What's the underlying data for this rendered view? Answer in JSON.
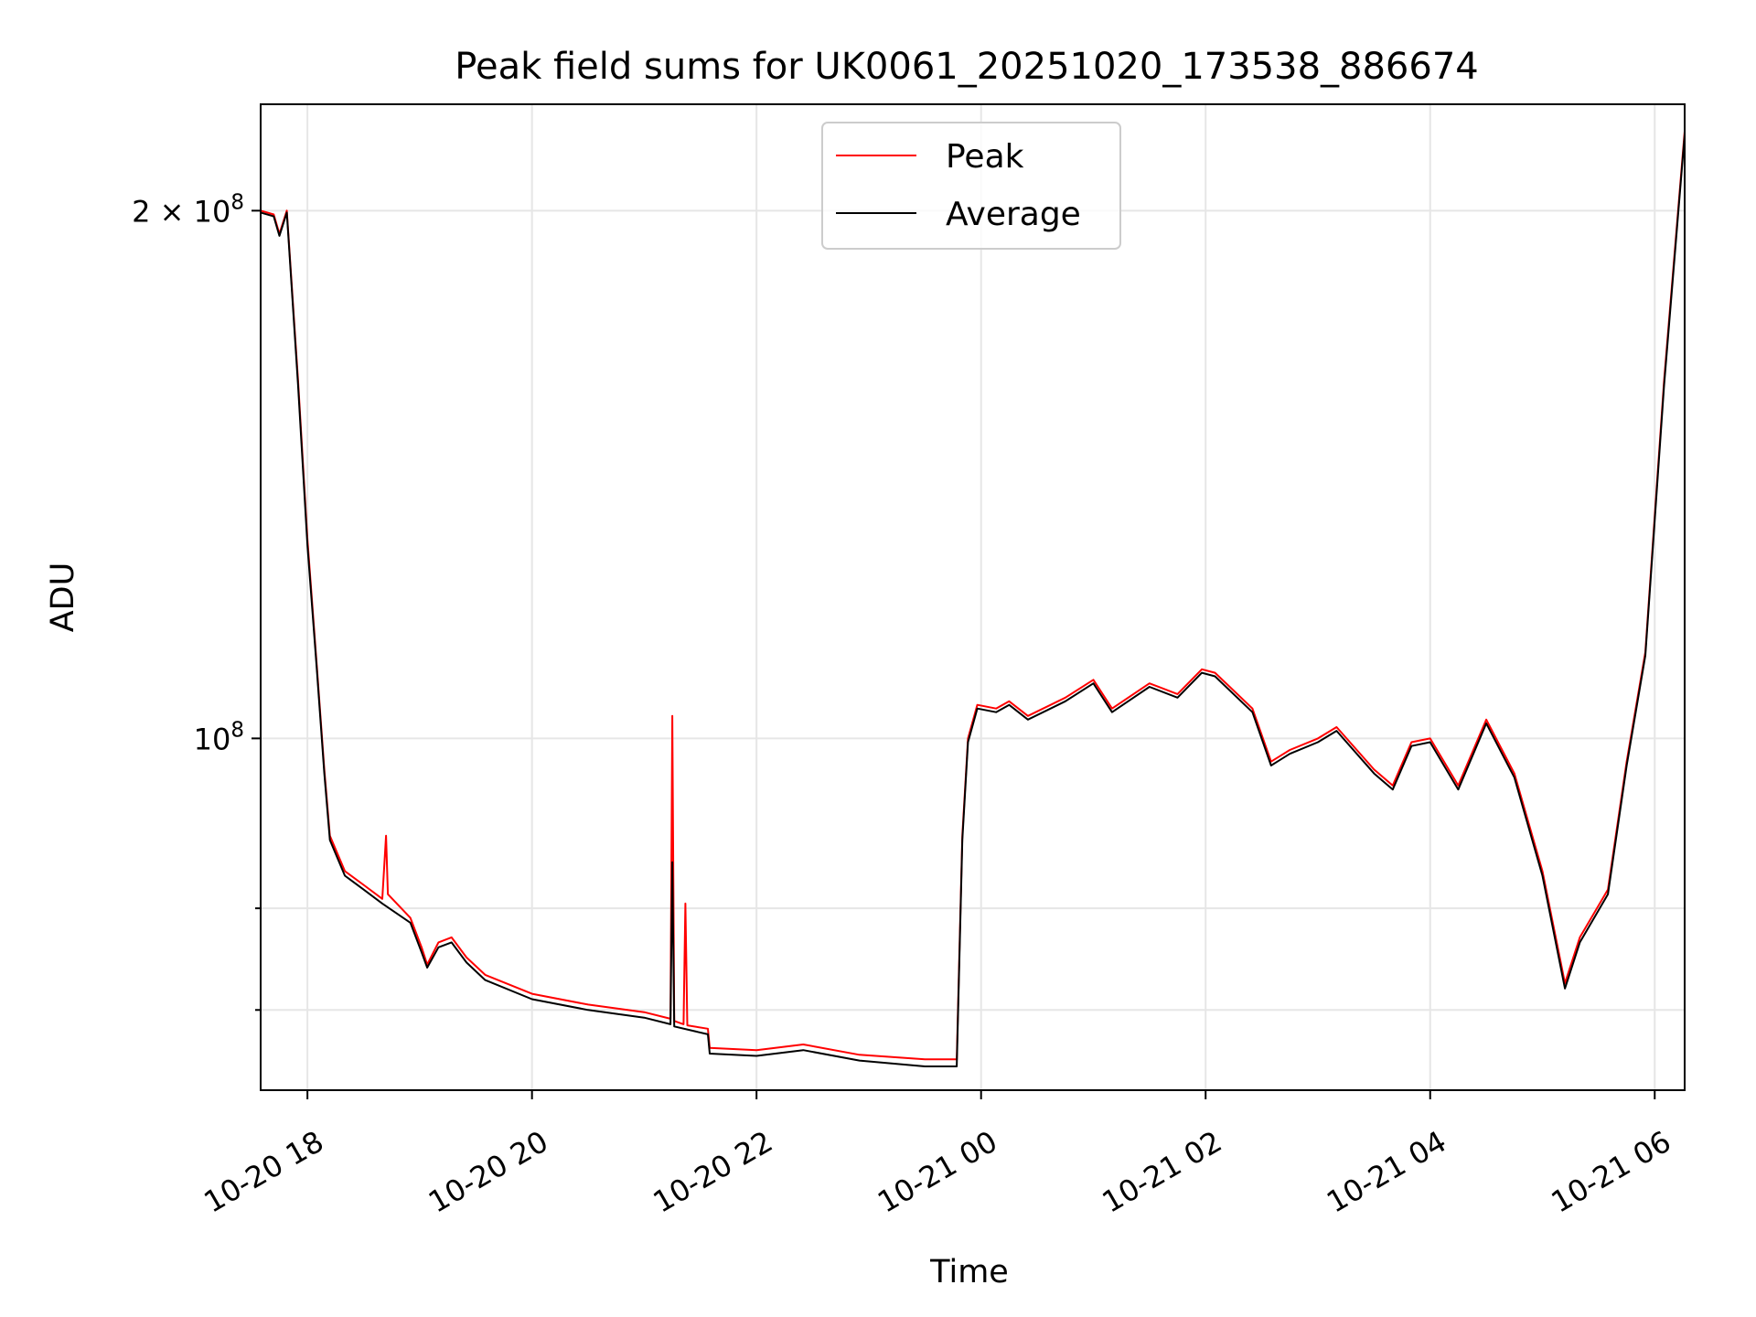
{
  "chart_data": {
    "type": "line",
    "title": "Peak field sums for UK0061_20251020_173538_886674",
    "xlabel": "Time",
    "ylabel": "ADU",
    "y_scale": "log",
    "x_range": [
      "2025-10-20 17:35",
      "2025-10-21 06:16"
    ],
    "ylim": [
      63000000,
      230000000
    ],
    "x_ticks": [
      {
        "label": "10-20 18",
        "time": "2025-10-20 18:00"
      },
      {
        "label": "10-20 20",
        "time": "2025-10-20 20:00"
      },
      {
        "label": "10-20 22",
        "time": "2025-10-20 22:00"
      },
      {
        "label": "10-21 00",
        "time": "2025-10-21 00:00"
      },
      {
        "label": "10-21 02",
        "time": "2025-10-21 02:00"
      },
      {
        "label": "10-21 04",
        "time": "2025-10-21 04:00"
      },
      {
        "label": "10-21 06",
        "time": "2025-10-21 06:00"
      }
    ],
    "y_ticks": [
      {
        "value": 100000000,
        "base": "10",
        "exp": "8"
      },
      {
        "value": 200000000,
        "coef": "2 × ",
        "base": "10",
        "exp": "8"
      }
    ],
    "y_minor_ticks": [
      80000000,
      70000000
    ],
    "grid": true,
    "legend_position": "upper-center",
    "series": [
      {
        "name": "Peak",
        "color": "#ff0000",
        "points": [
          [
            "2025-10-20 17:35",
            200000000
          ],
          [
            "2025-10-20 17:42",
            199000000
          ],
          [
            "2025-10-20 17:45",
            194000000
          ],
          [
            "2025-10-20 17:49",
            200000000
          ],
          [
            "2025-10-20 17:55",
            160000000
          ],
          [
            "2025-10-20 18:00",
            130000000
          ],
          [
            "2025-10-20 18:05",
            110000000
          ],
          [
            "2025-10-20 18:09",
            96000000
          ],
          [
            "2025-10-20 18:12",
            88000000
          ],
          [
            "2025-10-20 18:20",
            84000000
          ],
          [
            "2025-10-20 18:30",
            82500000
          ],
          [
            "2025-10-20 18:40",
            81000000
          ],
          [
            "2025-10-20 18:42",
            88000000
          ],
          [
            "2025-10-20 18:43",
            81500000
          ],
          [
            "2025-10-20 18:55",
            79000000
          ],
          [
            "2025-10-20 19:01",
            76000000
          ],
          [
            "2025-10-20 19:04",
            74300000
          ],
          [
            "2025-10-20 19:10",
            76500000
          ],
          [
            "2025-10-20 19:17",
            77000000
          ],
          [
            "2025-10-20 19:25",
            75000000
          ],
          [
            "2025-10-20 19:35",
            73300000
          ],
          [
            "2025-10-20 20:00",
            71500000
          ],
          [
            "2025-10-20 20:30",
            70500000
          ],
          [
            "2025-10-20 21:00",
            69800000
          ],
          [
            "2025-10-20 21:14",
            69200000
          ],
          [
            "2025-10-20 21:15",
            103000000
          ],
          [
            "2025-10-20 21:16",
            69000000
          ],
          [
            "2025-10-20 21:21",
            68700000
          ],
          [
            "2025-10-20 21:22",
            80500000
          ],
          [
            "2025-10-20 21:23",
            68600000
          ],
          [
            "2025-10-20 21:34",
            68300000
          ],
          [
            "2025-10-20 21:35",
            66600000
          ],
          [
            "2025-10-20 22:00",
            66400000
          ],
          [
            "2025-10-20 22:25",
            66900000
          ],
          [
            "2025-10-20 22:55",
            66000000
          ],
          [
            "2025-10-20 23:30",
            65600000
          ],
          [
            "2025-10-20 23:47",
            65600000
          ],
          [
            "2025-10-20 23:50",
            88000000
          ],
          [
            "2025-10-20 23:53",
            100000000
          ],
          [
            "2025-10-20 23:58",
            104500000
          ],
          [
            "2025-10-21 00:08",
            104000000
          ],
          [
            "2025-10-21 00:15",
            105000000
          ],
          [
            "2025-10-21 00:25",
            103000000
          ],
          [
            "2025-10-21 00:45",
            105500000
          ],
          [
            "2025-10-21 01:00",
            108000000
          ],
          [
            "2025-10-21 01:10",
            104000000
          ],
          [
            "2025-10-21 01:30",
            107500000
          ],
          [
            "2025-10-21 01:45",
            106000000
          ],
          [
            "2025-10-21 01:58",
            109500000
          ],
          [
            "2025-10-21 02:05",
            109000000
          ],
          [
            "2025-10-21 02:25",
            104000000
          ],
          [
            "2025-10-21 02:35",
            97000000
          ],
          [
            "2025-10-21 02:45",
            98500000
          ],
          [
            "2025-10-21 03:00",
            100000000
          ],
          [
            "2025-10-21 03:10",
            101500000
          ],
          [
            "2025-10-21 03:30",
            96000000
          ],
          [
            "2025-10-21 03:40",
            94000000
          ],
          [
            "2025-10-21 03:50",
            99500000
          ],
          [
            "2025-10-21 04:00",
            100000000
          ],
          [
            "2025-10-21 04:15",
            94000000
          ],
          [
            "2025-10-21 04:30",
            102500000
          ],
          [
            "2025-10-21 04:45",
            95500000
          ],
          [
            "2025-10-21 05:00",
            84000000
          ],
          [
            "2025-10-21 05:12",
            72500000
          ],
          [
            "2025-10-21 05:20",
            77000000
          ],
          [
            "2025-10-21 05:35",
            82000000
          ],
          [
            "2025-10-21 05:45",
            97000000
          ],
          [
            "2025-10-21 05:55",
            112000000
          ],
          [
            "2025-10-21 06:05",
            160000000
          ],
          [
            "2025-10-21 06:16",
            222000000
          ]
        ]
      },
      {
        "name": "Average",
        "color": "#000000",
        "points": [
          [
            "2025-10-20 17:35",
            199500000
          ],
          [
            "2025-10-20 17:42",
            198500000
          ],
          [
            "2025-10-20 17:45",
            193500000
          ],
          [
            "2025-10-20 17:49",
            199500000
          ],
          [
            "2025-10-20 17:55",
            159000000
          ],
          [
            "2025-10-20 18:00",
            129000000
          ],
          [
            "2025-10-20 18:05",
            109500000
          ],
          [
            "2025-10-20 18:09",
            95500000
          ],
          [
            "2025-10-20 18:12",
            87500000
          ],
          [
            "2025-10-20 18:20",
            83500000
          ],
          [
            "2025-10-20 18:30",
            82000000
          ],
          [
            "2025-10-20 18:40",
            80500000
          ],
          [
            "2025-10-20 18:55",
            78500000
          ],
          [
            "2025-10-20 19:01",
            75500000
          ],
          [
            "2025-10-20 19:04",
            74000000
          ],
          [
            "2025-10-20 19:10",
            76000000
          ],
          [
            "2025-10-20 19:17",
            76500000
          ],
          [
            "2025-10-20 19:25",
            74500000
          ],
          [
            "2025-10-20 19:35",
            72800000
          ],
          [
            "2025-10-20 20:00",
            71000000
          ],
          [
            "2025-10-20 20:30",
            70000000
          ],
          [
            "2025-10-20 21:00",
            69300000
          ],
          [
            "2025-10-20 21:14",
            68700000
          ],
          [
            "2025-10-20 21:15",
            85000000
          ],
          [
            "2025-10-20 21:16",
            68500000
          ],
          [
            "2025-10-20 21:34",
            67800000
          ],
          [
            "2025-10-20 21:35",
            66100000
          ],
          [
            "2025-10-20 22:00",
            65900000
          ],
          [
            "2025-10-20 22:25",
            66400000
          ],
          [
            "2025-10-20 22:55",
            65500000
          ],
          [
            "2025-10-20 23:30",
            65000000
          ],
          [
            "2025-10-20 23:47",
            65000000
          ],
          [
            "2025-10-20 23:50",
            87500000
          ],
          [
            "2025-10-20 23:53",
            99500000
          ],
          [
            "2025-10-20 23:58",
            104000000
          ],
          [
            "2025-10-21 00:08",
            103500000
          ],
          [
            "2025-10-21 00:15",
            104500000
          ],
          [
            "2025-10-21 00:25",
            102500000
          ],
          [
            "2025-10-21 00:45",
            105000000
          ],
          [
            "2025-10-21 01:00",
            107500000
          ],
          [
            "2025-10-21 01:10",
            103500000
          ],
          [
            "2025-10-21 01:30",
            107000000
          ],
          [
            "2025-10-21 01:45",
            105500000
          ],
          [
            "2025-10-21 01:58",
            109000000
          ],
          [
            "2025-10-21 02:05",
            108500000
          ],
          [
            "2025-10-21 02:25",
            103500000
          ],
          [
            "2025-10-21 02:35",
            96500000
          ],
          [
            "2025-10-21 02:45",
            98000000
          ],
          [
            "2025-10-21 03:00",
            99500000
          ],
          [
            "2025-10-21 03:10",
            101000000
          ],
          [
            "2025-10-21 03:30",
            95500000
          ],
          [
            "2025-10-21 03:40",
            93500000
          ],
          [
            "2025-10-21 03:50",
            99000000
          ],
          [
            "2025-10-21 04:00",
            99500000
          ],
          [
            "2025-10-21 04:15",
            93500000
          ],
          [
            "2025-10-21 04:30",
            102000000
          ],
          [
            "2025-10-21 04:45",
            95000000
          ],
          [
            "2025-10-21 05:00",
            83500000
          ],
          [
            "2025-10-21 05:12",
            72000000
          ],
          [
            "2025-10-21 05:20",
            76500000
          ],
          [
            "2025-10-21 05:35",
            81500000
          ],
          [
            "2025-10-21 05:45",
            96500000
          ],
          [
            "2025-10-21 05:55",
            111500000
          ],
          [
            "2025-10-21 06:05",
            159000000
          ],
          [
            "2025-10-21 06:16",
            221000000
          ]
        ]
      }
    ]
  }
}
